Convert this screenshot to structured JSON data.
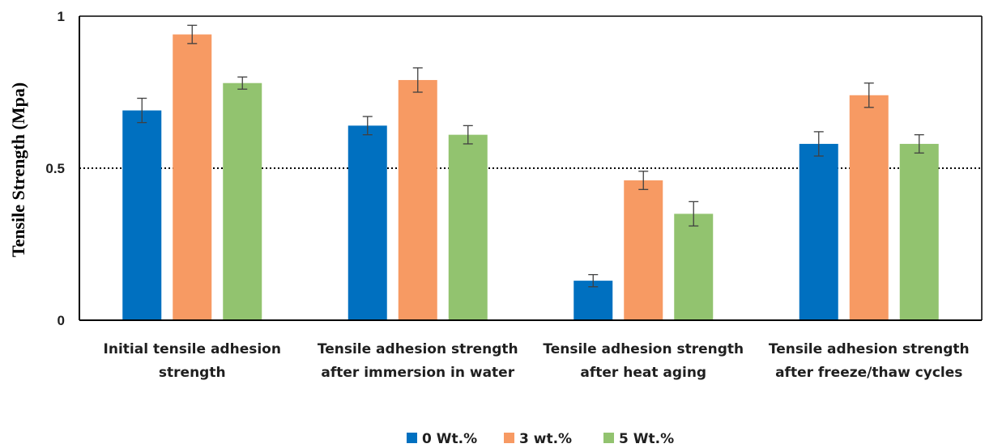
{
  "chart_data": {
    "type": "bar",
    "title": "",
    "xlabel": "",
    "ylabel": "Tensile Strength (Mpa)",
    "ylim": [
      0,
      1
    ],
    "yticks": [
      "0",
      "0.5",
      "1"
    ],
    "reference_line": {
      "y": 0.5,
      "style": "dotted"
    },
    "grid": false,
    "legend_position": "bottom",
    "categories": [
      [
        "Initial tensile adhesion",
        "strength"
      ],
      [
        "Tensile adhesion strength",
        "after immersion in water"
      ],
      [
        "Tensile adhesion strength",
        "after heat aging"
      ],
      [
        "Tensile adhesion strength",
        "after freeze/thaw cycles"
      ]
    ],
    "series": [
      {
        "name": "0 Wt.%",
        "color": "#0070C0",
        "values": [
          0.69,
          0.64,
          0.13,
          0.58
        ],
        "errors": [
          0.04,
          0.03,
          0.02,
          0.04
        ]
      },
      {
        "name": "3 wt.%",
        "color": "#F79A63",
        "values": [
          0.94,
          0.79,
          0.46,
          0.74
        ],
        "errors": [
          0.03,
          0.04,
          0.03,
          0.04
        ]
      },
      {
        "name": "5 Wt.%",
        "color": "#92C36F",
        "values": [
          0.78,
          0.61,
          0.35,
          0.58
        ],
        "errors": [
          0.02,
          0.03,
          0.04,
          0.03
        ]
      }
    ]
  }
}
